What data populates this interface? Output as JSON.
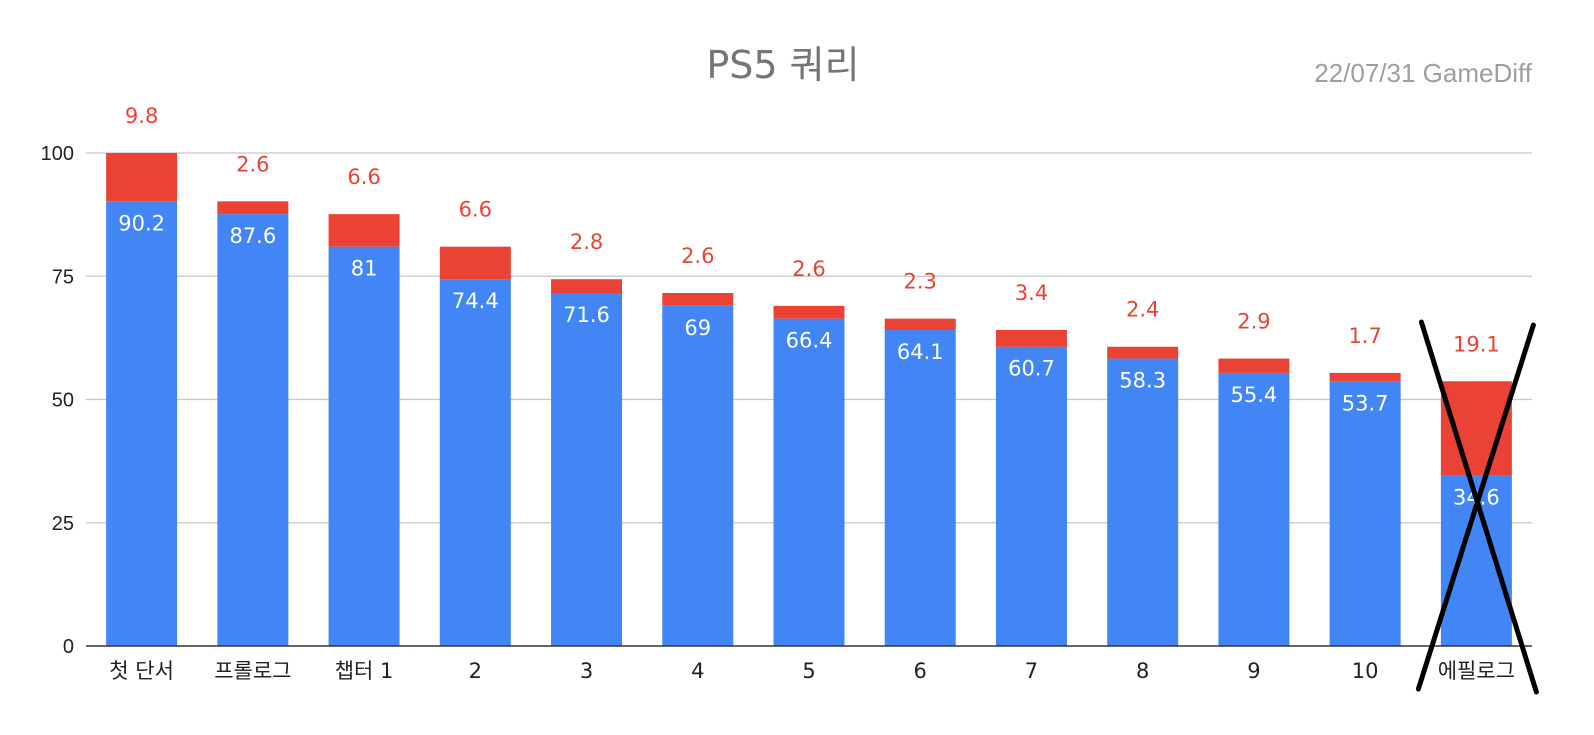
{
  "chart_data": {
    "type": "bar",
    "stacked": true,
    "title": "PS5 쿼리",
    "subtitle": "22/07/31  GameDiff",
    "xlabel": "",
    "ylabel": "",
    "ylim": [
      0,
      100
    ],
    "yticks": [
      "0",
      "25",
      "50",
      "75",
      "100"
    ],
    "grid": true,
    "legend": "none",
    "categories": [
      "첫 단서",
      "프롤로그",
      "챕터 1",
      "2",
      "3",
      "4",
      "5",
      "6",
      "7",
      "8",
      "9",
      "10",
      "에필로그"
    ],
    "series": [
      {
        "color": "#4285f4",
        "values": [
          90.2,
          87.6,
          81,
          74.4,
          71.6,
          69,
          66.4,
          64.1,
          60.7,
          58.3,
          55.4,
          53.7,
          34.6
        ],
        "labels": [
          "90.2",
          "87.6",
          "81",
          "74.4",
          "71.6",
          "69",
          "66.4",
          "64.1",
          "60.7",
          "58.3",
          "55.4",
          "53.7",
          "34.6"
        ]
      },
      {
        "color": "#ea4335",
        "values": [
          9.8,
          2.6,
          6.6,
          6.6,
          2.8,
          2.6,
          2.6,
          2.3,
          3.4,
          2.4,
          2.9,
          1.7,
          19.1
        ],
        "labels": [
          "9.8",
          "2.6",
          "6.6",
          "6.6",
          "2.8",
          "2.6",
          "2.6",
          "2.3",
          "3.4",
          "2.4",
          "2.9",
          "1.7",
          "19.1"
        ]
      }
    ],
    "annotation": {
      "type": "cross-out",
      "category_index": 12,
      "color": "#000000"
    }
  }
}
